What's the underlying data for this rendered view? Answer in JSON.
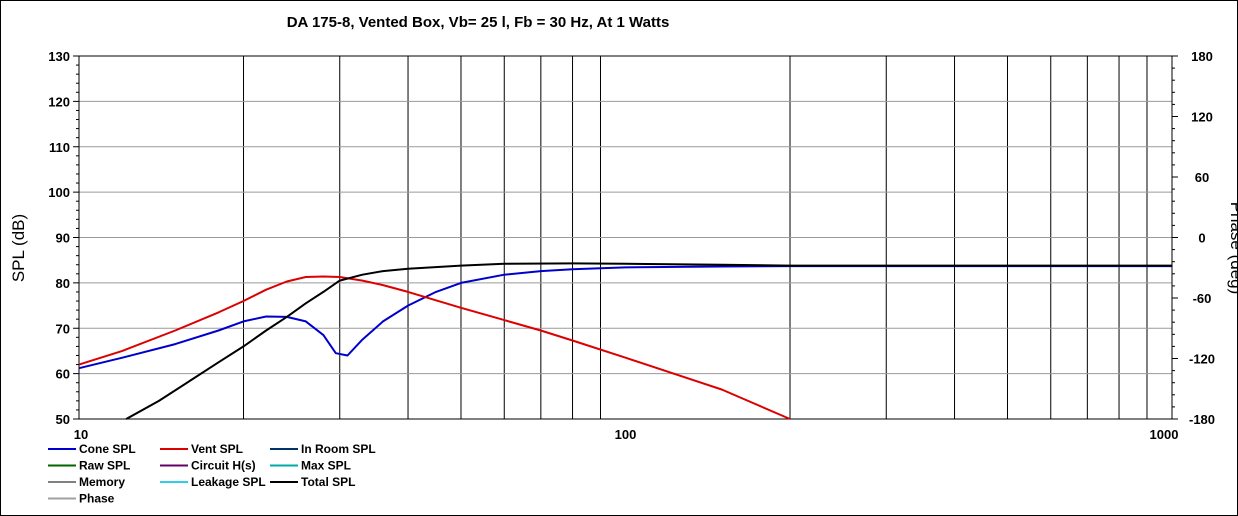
{
  "chart_data": {
    "type": "line",
    "title": "DA 175-8,  Vented Box, Vb= 25 l,  Fb = 30 Hz,  At 1 Watts",
    "xlabel": "",
    "ylabel": "SPL (dB)",
    "y2label": "Phase (deg)",
    "x_scale": "log",
    "xlim": [
      10,
      1000
    ],
    "ylim": [
      50,
      130
    ],
    "y2lim": [
      -180,
      180
    ],
    "x_ticks": [
      10,
      100,
      1000
    ],
    "x_tick_labels": [
      "10",
      "100",
      "1000"
    ],
    "y_ticks": [
      50,
      60,
      70,
      80,
      90,
      100,
      110,
      120,
      130
    ],
    "y_tick_labels": [
      "50",
      "60",
      "70",
      "80",
      "90",
      "100",
      "110",
      "120",
      "130"
    ],
    "y2_ticks": [
      -180,
      -120,
      -60,
      0,
      60,
      120,
      180
    ],
    "y2_tick_labels": [
      "-180",
      "-120",
      "-60",
      "0",
      "60",
      "120",
      "180"
    ],
    "grid": true,
    "legend_position": "bottom-left",
    "legend": [
      {
        "name": "Cone SPL",
        "color": "#0000cc"
      },
      {
        "name": "Vent SPL",
        "color": "#dd0000"
      },
      {
        "name": "In Room SPL",
        "color": "#003366"
      },
      {
        "name": "Raw SPL",
        "color": "#006600"
      },
      {
        "name": "Circuit H(s)",
        "color": "#660066"
      },
      {
        "name": "Max SPL",
        "color": "#00aaaa"
      },
      {
        "name": "Memory",
        "color": "#808080"
      },
      {
        "name": "Leakage SPL",
        "color": "#33ccee"
      },
      {
        "name": "Total SPL",
        "color": "#000000"
      },
      {
        "name": "Phase",
        "color": "#a0a0a0"
      }
    ],
    "series": [
      {
        "name": "Cone SPL",
        "color": "#0000cc",
        "points": [
          [
            10,
            61.2
          ],
          [
            12,
            63.5
          ],
          [
            15,
            66.5
          ],
          [
            18,
            69.5
          ],
          [
            20,
            71.5
          ],
          [
            22,
            72.6
          ],
          [
            24,
            72.5
          ],
          [
            26,
            71.5
          ],
          [
            28,
            68.5
          ],
          [
            29.5,
            64.5
          ],
          [
            31,
            64.0
          ],
          [
            33,
            67.5
          ],
          [
            36,
            71.5
          ],
          [
            40,
            75.0
          ],
          [
            45,
            78.0
          ],
          [
            50,
            80.0
          ],
          [
            60,
            81.8
          ],
          [
            70,
            82.6
          ],
          [
            80,
            83.0
          ],
          [
            100,
            83.4
          ],
          [
            150,
            83.6
          ],
          [
            200,
            83.7
          ],
          [
            1000,
            83.7
          ]
        ]
      },
      {
        "name": "Vent SPL",
        "color": "#dd0000",
        "points": [
          [
            10,
            62.0
          ],
          [
            12,
            65.0
          ],
          [
            15,
            69.5
          ],
          [
            18,
            73.5
          ],
          [
            20,
            76.0
          ],
          [
            22,
            78.5
          ],
          [
            24,
            80.3
          ],
          [
            26,
            81.3
          ],
          [
            28,
            81.4
          ],
          [
            30,
            81.3
          ],
          [
            33,
            80.5
          ],
          [
            36,
            79.5
          ],
          [
            40,
            78.0
          ],
          [
            50,
            74.5
          ],
          [
            60,
            71.8
          ],
          [
            70,
            69.5
          ],
          [
            80,
            67.3
          ],
          [
            100,
            63.5
          ],
          [
            150,
            56.5
          ],
          [
            200,
            50.0
          ]
        ]
      },
      {
        "name": "Total SPL",
        "color": "#000000",
        "points": [
          [
            12.2,
            50.0
          ],
          [
            14,
            54.0
          ],
          [
            16,
            58.5
          ],
          [
            18,
            62.5
          ],
          [
            20,
            66.0
          ],
          [
            22,
            69.5
          ],
          [
            24,
            72.5
          ],
          [
            26,
            75.5
          ],
          [
            28,
            78.0
          ],
          [
            30,
            80.5
          ],
          [
            33,
            81.8
          ],
          [
            36,
            82.6
          ],
          [
            40,
            83.1
          ],
          [
            50,
            83.8
          ],
          [
            60,
            84.2
          ],
          [
            80,
            84.3
          ],
          [
            100,
            84.2
          ],
          [
            150,
            84.0
          ],
          [
            200,
            83.8
          ],
          [
            1000,
            83.8
          ]
        ]
      }
    ]
  }
}
